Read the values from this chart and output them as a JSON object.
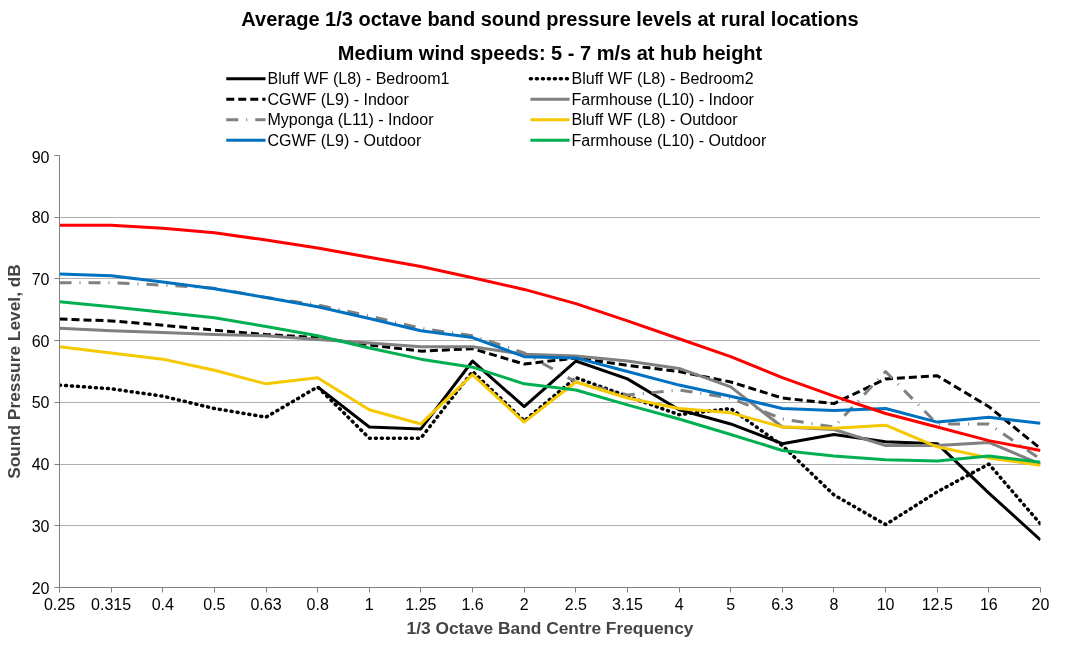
{
  "chart_data": {
    "type": "line",
    "title": "Average 1/3 octave band sound pressure levels at rural locations",
    "subtitle": "Medium wind speeds: 5 - 7 m/s at hub height",
    "xlabel": "1/3 Octave Band Centre Frequency",
    "ylabel": "Sound Pressure Level, dB",
    "categories": [
      "0.25",
      "0.315",
      "0.4",
      "0.5",
      "0.63",
      "0.8",
      "1",
      "1.25",
      "1.6",
      "2",
      "2.5",
      "3.15",
      "4",
      "5",
      "6.3",
      "8",
      "10",
      "12.5",
      "16",
      "20"
    ],
    "ylim": [
      20,
      90
    ],
    "yticks": [
      20,
      30,
      40,
      50,
      60,
      70,
      80,
      90
    ],
    "grid": "y",
    "legend": "top",
    "series": [
      {
        "name": "Bluff WF (L8) - Bedroom1",
        "color": "#000000",
        "line_style": "solid",
        "values": [
          null,
          null,
          null,
          null,
          null,
          52.5,
          46,
          45.7,
          56.7,
          49.3,
          56.7,
          53.8,
          48.8,
          46.5,
          43.3,
          44.8,
          43.6,
          43.3,
          35.3,
          27.7
        ]
      },
      {
        "name": "Bluff WF (L8) - Bedroom2",
        "color": "#000000",
        "line_style": "dotted",
        "values": [
          52.8,
          52.2,
          51,
          49,
          47.6,
          52.5,
          44.2,
          44.2,
          55,
          47,
          54,
          51,
          48,
          49,
          43,
          35,
          30.2,
          35.5,
          40,
          30.3
        ]
      },
      {
        "name": "CGWF (L9) - Indoor",
        "color": "#000000",
        "line_style": "dashed",
        "values": [
          63.5,
          63.2,
          62.5,
          61.7,
          61,
          60.5,
          59.3,
          58.3,
          58.7,
          56.2,
          57.2,
          56,
          55,
          53.3,
          50.7,
          49.8,
          53.8,
          54.3,
          49.3,
          42.5
        ]
      },
      {
        "name": "Farmhouse (L10) - Indoor",
        "color": "#808080",
        "line_style": "solid",
        "values": [
          62,
          61.6,
          61.3,
          61,
          60.8,
          60.2,
          59.6,
          59,
          59,
          57.8,
          57.5,
          56.7,
          55.5,
          52.5,
          46,
          45.6,
          43,
          43,
          43.5,
          40
        ]
      },
      {
        "name": "Myponga (L11) - Indoor",
        "color": "#808080",
        "line_style": "dashdot",
        "values": [
          69.4,
          69.4,
          69,
          68.5,
          67,
          65.8,
          64,
          62,
          60.8,
          58,
          53.3,
          51.2,
          52,
          50.7,
          47.3,
          46,
          55,
          46.5,
          46.5,
          40.8
        ]
      },
      {
        "name": "Bluff WF (L8) - Outdoor",
        "color": "#f5c800",
        "line_style": "solid",
        "values": [
          59,
          58,
          57,
          55.2,
          53,
          54,
          48.8,
          46.5,
          54.5,
          46.8,
          53.3,
          50.7,
          49,
          48.3,
          46,
          45.8,
          46.3,
          42.8,
          41,
          39.8
        ]
      },
      {
        "name": "CGWF (L9) - Outdoor",
        "color": "#0070c0",
        "line_style": "solid",
        "values": [
          70.8,
          70.5,
          69.5,
          68.4,
          67,
          65.5,
          63.6,
          61.6,
          60.5,
          57.4,
          57.2,
          55,
          52.8,
          51,
          49,
          48.7,
          49,
          46.8,
          47.6,
          46.6
        ]
      },
      {
        "name": "Farmhouse (L10) - Outdoor",
        "color": "#00b050",
        "line_style": "solid",
        "values": [
          66.3,
          65.5,
          64.6,
          63.7,
          62.3,
          60.8,
          58.8,
          57,
          55.7,
          53,
          52,
          49.6,
          47.3,
          44.8,
          42.2,
          41.3,
          40.7,
          40.5,
          41.3,
          40.3
        ]
      },
      {
        "color": "#ff0000",
        "line_style": "solid",
        "values": [
          78.7,
          78.7,
          78.2,
          77.5,
          76.3,
          75,
          73.5,
          72,
          70.2,
          68.3,
          66,
          63.2,
          60.3,
          57.4,
          54,
          51,
          48.2,
          46,
          43.8,
          42.2
        ]
      }
    ]
  }
}
